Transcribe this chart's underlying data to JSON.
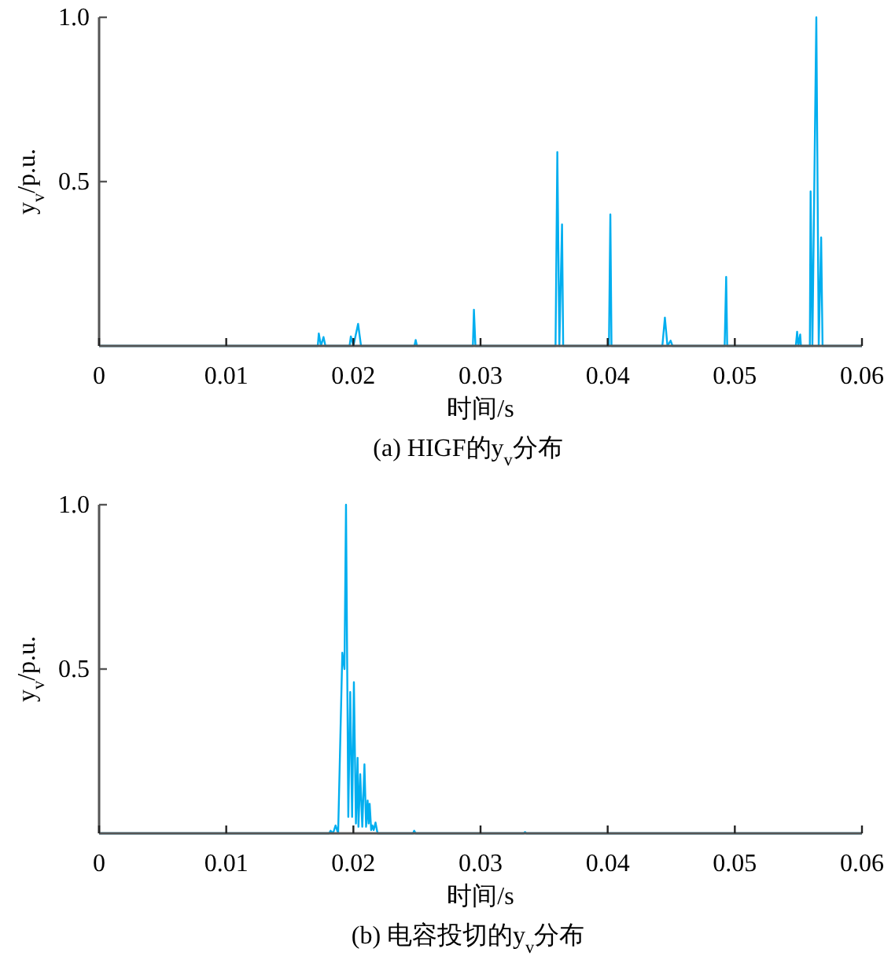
{
  "chart_data": [
    {
      "type": "line",
      "title": "(a) HIGF的y$_{v}$分布",
      "xlabel": "时间/s",
      "ylabel": "y$_{v}$/p.u.",
      "xlim": [
        0,
        0.06
      ],
      "xticks": [
        0,
        0.01,
        0.02,
        0.03,
        0.04,
        0.05,
        0.06
      ],
      "ylim": [
        0,
        1
      ],
      "yticks": [
        0.5,
        {
          "value": 1,
          "label": "1.0"
        }
      ],
      "marker": "none",
      "line_style": "solid",
      "series": [
        {
          "color": "#00aeef",
          "x": [
            0,
            0.0172,
            0.01728,
            0.01745,
            0.01765,
            0.0178,
            0.0197,
            0.0198,
            0.02,
            0.02037,
            0.0206,
            0.0248,
            0.0249,
            0.025,
            0.0294,
            0.02948,
            0.0296,
            0.0359,
            0.03604,
            0.0362,
            0.03641,
            0.0365,
            0.0401,
            0.04021,
            0.0403,
            0.0443,
            0.0445,
            0.0447,
            0.04495,
            0.0451,
            0.0492,
            0.04932,
            0.0494,
            0.0548,
            0.0549,
            0.055,
            0.05514,
            0.0552,
            0.0559,
            0.05596,
            0.0561,
            0.05641,
            0.0566,
            0.05679,
            0.0569,
            0.06
          ],
          "values": [
            0,
            0,
            0.038,
            0,
            0.027,
            0,
            0,
            0.029,
            0,
            0.067,
            0,
            0,
            0.018,
            0,
            0,
            0.11,
            0,
            0,
            0.59,
            0,
            0.37,
            0,
            0,
            0.4,
            0,
            0,
            0.086,
            0,
            0.016,
            0,
            0,
            0.21,
            0,
            0,
            0.043,
            0,
            0.035,
            0,
            0,
            0.47,
            0,
            1.0,
            0,
            0.33,
            0,
            0
          ]
        }
      ]
    },
    {
      "type": "line",
      "title": "(b) 电容投切的y$_{v}$分布",
      "xlabel": "时间/s",
      "ylabel": "y$_{v}$/p.u.",
      "xlim": [
        0,
        0.06
      ],
      "xticks": [
        0,
        0.01,
        0.02,
        0.03,
        0.04,
        0.05,
        0.06
      ],
      "ylim": [
        0,
        1
      ],
      "yticks": [
        0.5,
        {
          "value": 1,
          "label": "1.0"
        }
      ],
      "marker": "none",
      "line_style": "solid",
      "series": [
        {
          "color": "#00aeef",
          "x": [
            0,
            0.0181,
            0.0182,
            0.0184,
            0.0186,
            0.0188,
            0.01913,
            0.0193,
            0.01942,
            0.0196,
            0.01975,
            0.0199,
            0.02004,
            0.0202,
            0.02033,
            0.0204,
            0.02054,
            0.0207,
            0.02087,
            0.021,
            0.02112,
            0.0212,
            0.02128,
            0.0214,
            0.02149,
            0.0216,
            0.02174,
            0.0219,
            0.0247,
            0.02478,
            0.0249,
            0.0334,
            0.0335,
            0.0336,
            0.06
          ],
          "values": [
            0,
            0,
            0.008,
            0,
            0.024,
            0,
            0.55,
            0.5,
            1.0,
            0.05,
            0.43,
            0.05,
            0.46,
            0.03,
            0.23,
            0.02,
            0.18,
            0.02,
            0.21,
            0.02,
            0.1,
            0.03,
            0.09,
            0.01,
            0.024,
            0.01,
            0.033,
            0,
            0,
            0.008,
            0,
            0,
            0.004,
            0,
            0
          ]
        }
      ]
    }
  ]
}
